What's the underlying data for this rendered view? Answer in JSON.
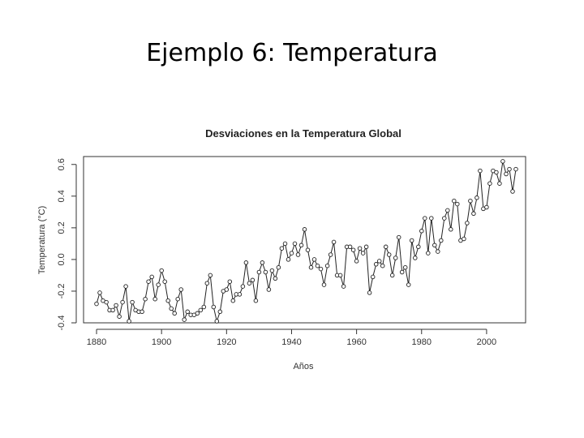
{
  "slide": {
    "title": "Ejemplo 6: Temperatura"
  },
  "chart_data": {
    "type": "line",
    "title": "Desviaciones en la Temperatura Global",
    "xlabel": "Años",
    "ylabel": "Temperatura (°C)",
    "xlim": [
      1876,
      2012
    ],
    "ylim": [
      -0.4,
      0.65
    ],
    "xticks": [
      1880,
      1900,
      1920,
      1940,
      1960,
      1980,
      2000
    ],
    "yticks": [
      -0.4,
      -0.2,
      0.0,
      0.2,
      0.4,
      0.6
    ],
    "ytick_labels": [
      "-0.4",
      "-0.2",
      "0.0",
      "0.2",
      "0.4",
      "0.6"
    ],
    "markers": "open-circle",
    "x": [
      1880,
      1881,
      1882,
      1883,
      1884,
      1885,
      1886,
      1887,
      1888,
      1889,
      1890,
      1891,
      1892,
      1893,
      1894,
      1895,
      1896,
      1897,
      1898,
      1899,
      1900,
      1901,
      1902,
      1903,
      1904,
      1905,
      1906,
      1907,
      1908,
      1909,
      1910,
      1911,
      1912,
      1913,
      1914,
      1915,
      1916,
      1917,
      1918,
      1919,
      1920,
      1921,
      1922,
      1923,
      1924,
      1925,
      1926,
      1927,
      1928,
      1929,
      1930,
      1931,
      1932,
      1933,
      1934,
      1935,
      1936,
      1937,
      1938,
      1939,
      1940,
      1941,
      1942,
      1943,
      1944,
      1945,
      1946,
      1947,
      1948,
      1949,
      1950,
      1951,
      1952,
      1953,
      1954,
      1955,
      1956,
      1957,
      1958,
      1959,
      1960,
      1961,
      1962,
      1963,
      1964,
      1965,
      1966,
      1967,
      1968,
      1969,
      1970,
      1971,
      1972,
      1973,
      1974,
      1975,
      1976,
      1977,
      1978,
      1979,
      1980,
      1981,
      1982,
      1983,
      1984,
      1985,
      1986,
      1987,
      1988,
      1989,
      1990,
      1991,
      1992,
      1993,
      1994,
      1995,
      1996,
      1997,
      1998,
      1999,
      2000,
      2001,
      2002,
      2003,
      2004,
      2005,
      2006,
      2007,
      2008,
      2009
    ],
    "values": [
      -0.28,
      -0.21,
      -0.26,
      -0.27,
      -0.32,
      -0.32,
      -0.29,
      -0.36,
      -0.27,
      -0.17,
      -0.39,
      -0.27,
      -0.32,
      -0.33,
      -0.33,
      -0.25,
      -0.14,
      -0.11,
      -0.25,
      -0.16,
      -0.07,
      -0.14,
      -0.26,
      -0.31,
      -0.34,
      -0.25,
      -0.19,
      -0.38,
      -0.33,
      -0.35,
      -0.35,
      -0.34,
      -0.32,
      -0.3,
      -0.15,
      -0.1,
      -0.3,
      -0.39,
      -0.33,
      -0.2,
      -0.19,
      -0.14,
      -0.26,
      -0.22,
      -0.22,
      -0.17,
      -0.02,
      -0.15,
      -0.13,
      -0.26,
      -0.08,
      -0.02,
      -0.08,
      -0.19,
      -0.07,
      -0.12,
      -0.05,
      0.07,
      0.1,
      0.0,
      0.04,
      0.1,
      0.03,
      0.09,
      0.19,
      0.06,
      -0.05,
      0.0,
      -0.04,
      -0.06,
      -0.16,
      -0.04,
      0.03,
      0.11,
      -0.1,
      -0.1,
      -0.17,
      0.08,
      0.08,
      0.06,
      -0.01,
      0.07,
      0.04,
      0.08,
      -0.21,
      -0.11,
      -0.03,
      -0.01,
      -0.04,
      0.08,
      0.03,
      -0.1,
      0.01,
      0.14,
      -0.08,
      -0.05,
      -0.16,
      0.12,
      0.01,
      0.08,
      0.18,
      0.26,
      0.04,
      0.26,
      0.09,
      0.05,
      0.12,
      0.26,
      0.31,
      0.19,
      0.37,
      0.35,
      0.12,
      0.13,
      0.23,
      0.37,
      0.29,
      0.39,
      0.56,
      0.32,
      0.33,
      0.48,
      0.56,
      0.55,
      0.48,
      0.62,
      0.54,
      0.57,
      0.43,
      0.57
    ]
  }
}
